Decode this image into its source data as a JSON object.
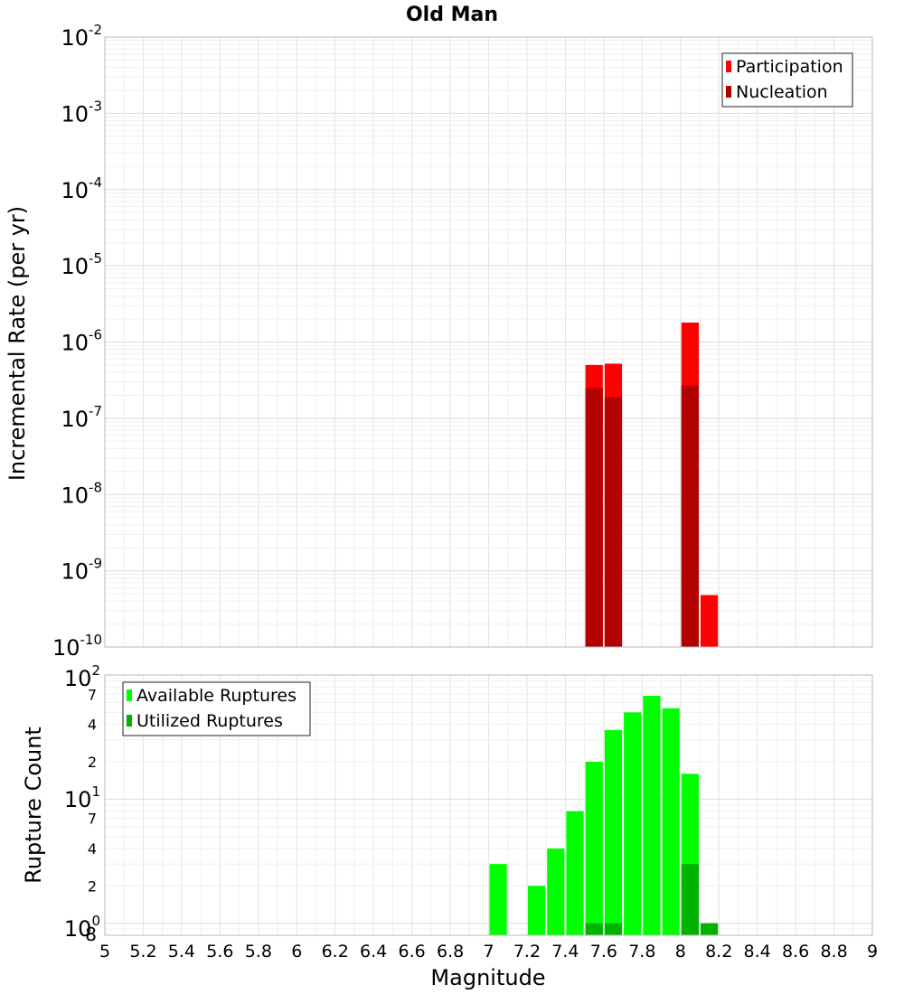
{
  "chart_data": [
    {
      "type": "bar",
      "title": "Old Man",
      "xlabel": "",
      "ylabel": "Incremental Rate (per yr)",
      "yscale": "log",
      "ylim": [
        1e-10,
        0.01
      ],
      "xlim": [
        5,
        9
      ],
      "y_ticks": [
        {
          "base": "10",
          "exp": "-2"
        },
        {
          "base": "10",
          "exp": "-3"
        },
        {
          "base": "10",
          "exp": "-4"
        },
        {
          "base": "10",
          "exp": "-5"
        },
        {
          "base": "10",
          "exp": "-6"
        },
        {
          "base": "10",
          "exp": "-7"
        },
        {
          "base": "10",
          "exp": "-8"
        },
        {
          "base": "10",
          "exp": "-9"
        },
        {
          "base": "10",
          "exp": "-10"
        }
      ],
      "bin_width": 0.1,
      "grid": true,
      "legend_position": "top-right",
      "series": [
        {
          "name": "Participation",
          "color": "#ff0000",
          "x": [
            7.55,
            7.65,
            8.05,
            8.15
          ],
          "values": [
            5e-07,
            5.2e-07,
            1.8e-06,
            4.8e-10
          ]
        },
        {
          "name": "Nucleation",
          "color": "#b30000",
          "x": [
            7.55,
            7.65,
            8.05
          ],
          "values": [
            2.5e-07,
            1.9e-07,
            2.7e-07
          ]
        }
      ]
    },
    {
      "type": "bar",
      "title": "",
      "xlabel": "Magnitude",
      "ylabel": "Rupture Count",
      "yscale": "log",
      "ylim": [
        0.8,
        100
      ],
      "xlim": [
        5,
        9
      ],
      "x_ticks": [
        "5",
        "5.2",
        "5.4",
        "5.6",
        "5.8",
        "6",
        "6.2",
        "6.4",
        "6.6",
        "6.8",
        "7",
        "7.2",
        "7.4",
        "7.6",
        "7.8",
        "8",
        "8.2",
        "8.4",
        "8.6",
        "8.8",
        "9"
      ],
      "y_major_ticks": [
        {
          "base": "10",
          "exp": "2"
        },
        {
          "base": "10",
          "exp": "1"
        },
        {
          "base": "10",
          "exp": "0"
        }
      ],
      "y_minor_ticks": [
        "7",
        "4",
        "2",
        "7",
        "4",
        "2",
        "8"
      ],
      "bin_width": 0.1,
      "grid": true,
      "legend_position": "top-left",
      "series": [
        {
          "name": "Available Ruptures",
          "color": "#00ff00",
          "x": [
            7.05,
            7.25,
            7.35,
            7.45,
            7.55,
            7.65,
            7.75,
            7.85,
            7.95,
            8.05
          ],
          "values": [
            3,
            2,
            4,
            8,
            20,
            36,
            50,
            68,
            54,
            16
          ]
        },
        {
          "name": "Utilized Ruptures",
          "color": "#00b300",
          "x": [
            7.55,
            7.65,
            8.05,
            8.15
          ],
          "values": [
            1,
            1,
            3,
            1
          ]
        }
      ]
    }
  ]
}
